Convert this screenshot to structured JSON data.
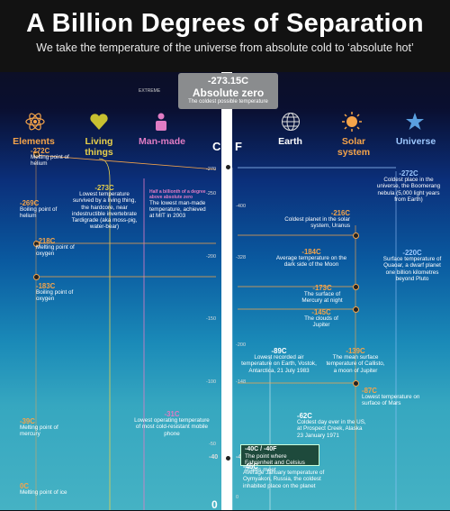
{
  "header": {
    "title": "A Billion Degrees of Separation",
    "subtitle": "We take the temperature of the universe from absolute cold to ‘absolute hot’"
  },
  "extreme_label": "EXTREME",
  "absolute_zero": {
    "temp": "-273.15C",
    "name": "Absolute zero",
    "desc": "The coldest possible temperature"
  },
  "categories": {
    "elements": {
      "label": "Elements",
      "color": "#f5a44a",
      "icon": "atom-icon"
    },
    "living": {
      "label": "Living things",
      "color": "#e8d04a",
      "icon": "heart-icon"
    },
    "manmade": {
      "label": "Man-made",
      "color": "#e07cc4",
      "icon": "person-icon"
    },
    "earth": {
      "label": "Earth",
      "color": "#ffffff",
      "icon": "globe-icon"
    },
    "solar": {
      "label": "Solar system",
      "color": "#f5a44a",
      "icon": "sun-icon"
    },
    "universe": {
      "label": "Universe",
      "color": "#9cc8ff",
      "icon": "star-icon"
    }
  },
  "scale": {
    "c_label": "C",
    "f_label": "F"
  },
  "chart_data": {
    "type": "table",
    "celsius_ticks": [
      "-270",
      "-250",
      "-200",
      "-150",
      "-100",
      "-50",
      "-40",
      "0"
    ],
    "fahrenheit_ticks": [
      "-400",
      "-328",
      "-200",
      "-148",
      "-40",
      "0"
    ],
    "items": [
      {
        "temp": "-272C",
        "desc": "Melting point of helium",
        "category": "Elements"
      },
      {
        "temp": "-269C",
        "desc": "Boiling point of helium",
        "category": "Elements"
      },
      {
        "temp": "-273C",
        "desc": "Lowest temperature survived by a living thing, the hardcore, near indestructible invertebrate Tardigrade (aka moss-pig, water-bear)",
        "category": "Living things"
      },
      {
        "temp": "Half a billionth of a degree above absolute zero",
        "desc": "The lowest man-made temperature, achieved at MIT in 2003",
        "category": "Man-made"
      },
      {
        "temp": "-272C",
        "desc": "Coldest place in the universe, the Boomerang nebula (5,000 light years from Earth)",
        "category": "Universe"
      },
      {
        "temp": "-216C",
        "desc": "Coldest planet in the solar system, Uranus",
        "category": "Solar system"
      },
      {
        "temp": "-220C",
        "desc": "Surface temperature of Quaoar, a dwarf planet one billion kilometres beyond Pluto",
        "category": "Universe"
      },
      {
        "temp": "-218C",
        "desc": "Melting point of oxygen",
        "category": "Elements"
      },
      {
        "temp": "-184C",
        "desc": "Average temperature on the dark side of the Moon",
        "category": "Solar system"
      },
      {
        "temp": "-183C",
        "desc": "Boiling point of oxygen",
        "category": "Elements"
      },
      {
        "temp": "-173C",
        "desc": "The surface of Mercury at night",
        "category": "Solar system"
      },
      {
        "temp": "-145C",
        "desc": "The clouds of Jupiter",
        "category": "Solar system"
      },
      {
        "temp": "-139C",
        "desc": "The mean surface temperature of Callisto, a moon of Jupiter",
        "category": "Solar system"
      },
      {
        "temp": "-89C",
        "desc": "Lowest recorded air temperature on Earth, Vostok, Antarctica, 21 July 1983",
        "category": "Earth"
      },
      {
        "temp": "-87C",
        "desc": "Lowest temperature on surface of Mars",
        "category": "Solar system"
      },
      {
        "temp": "-62C",
        "desc": "Coldest day ever in the US, at Prospect Creek, Alaska 23 January 1971",
        "category": "Earth"
      },
      {
        "temp": "-31C",
        "desc": "Lowest operating temperature of most cold-resistant mobile phone",
        "category": "Man-made"
      },
      {
        "temp": "-39C",
        "desc": "Melting point of mercury",
        "category": "Elements"
      },
      {
        "temp": "-40C / -40F",
        "desc": "The point where Fahrenheit and Celsius scales meet",
        "category": "Scale"
      },
      {
        "temp": "-46C",
        "desc": "Average January temperature of Oymyakon, Russia, the coldest inhabited place on the planet",
        "category": "Earth"
      },
      {
        "temp": "0C",
        "desc": "Melting point of ice",
        "category": "Elements"
      }
    ]
  }
}
